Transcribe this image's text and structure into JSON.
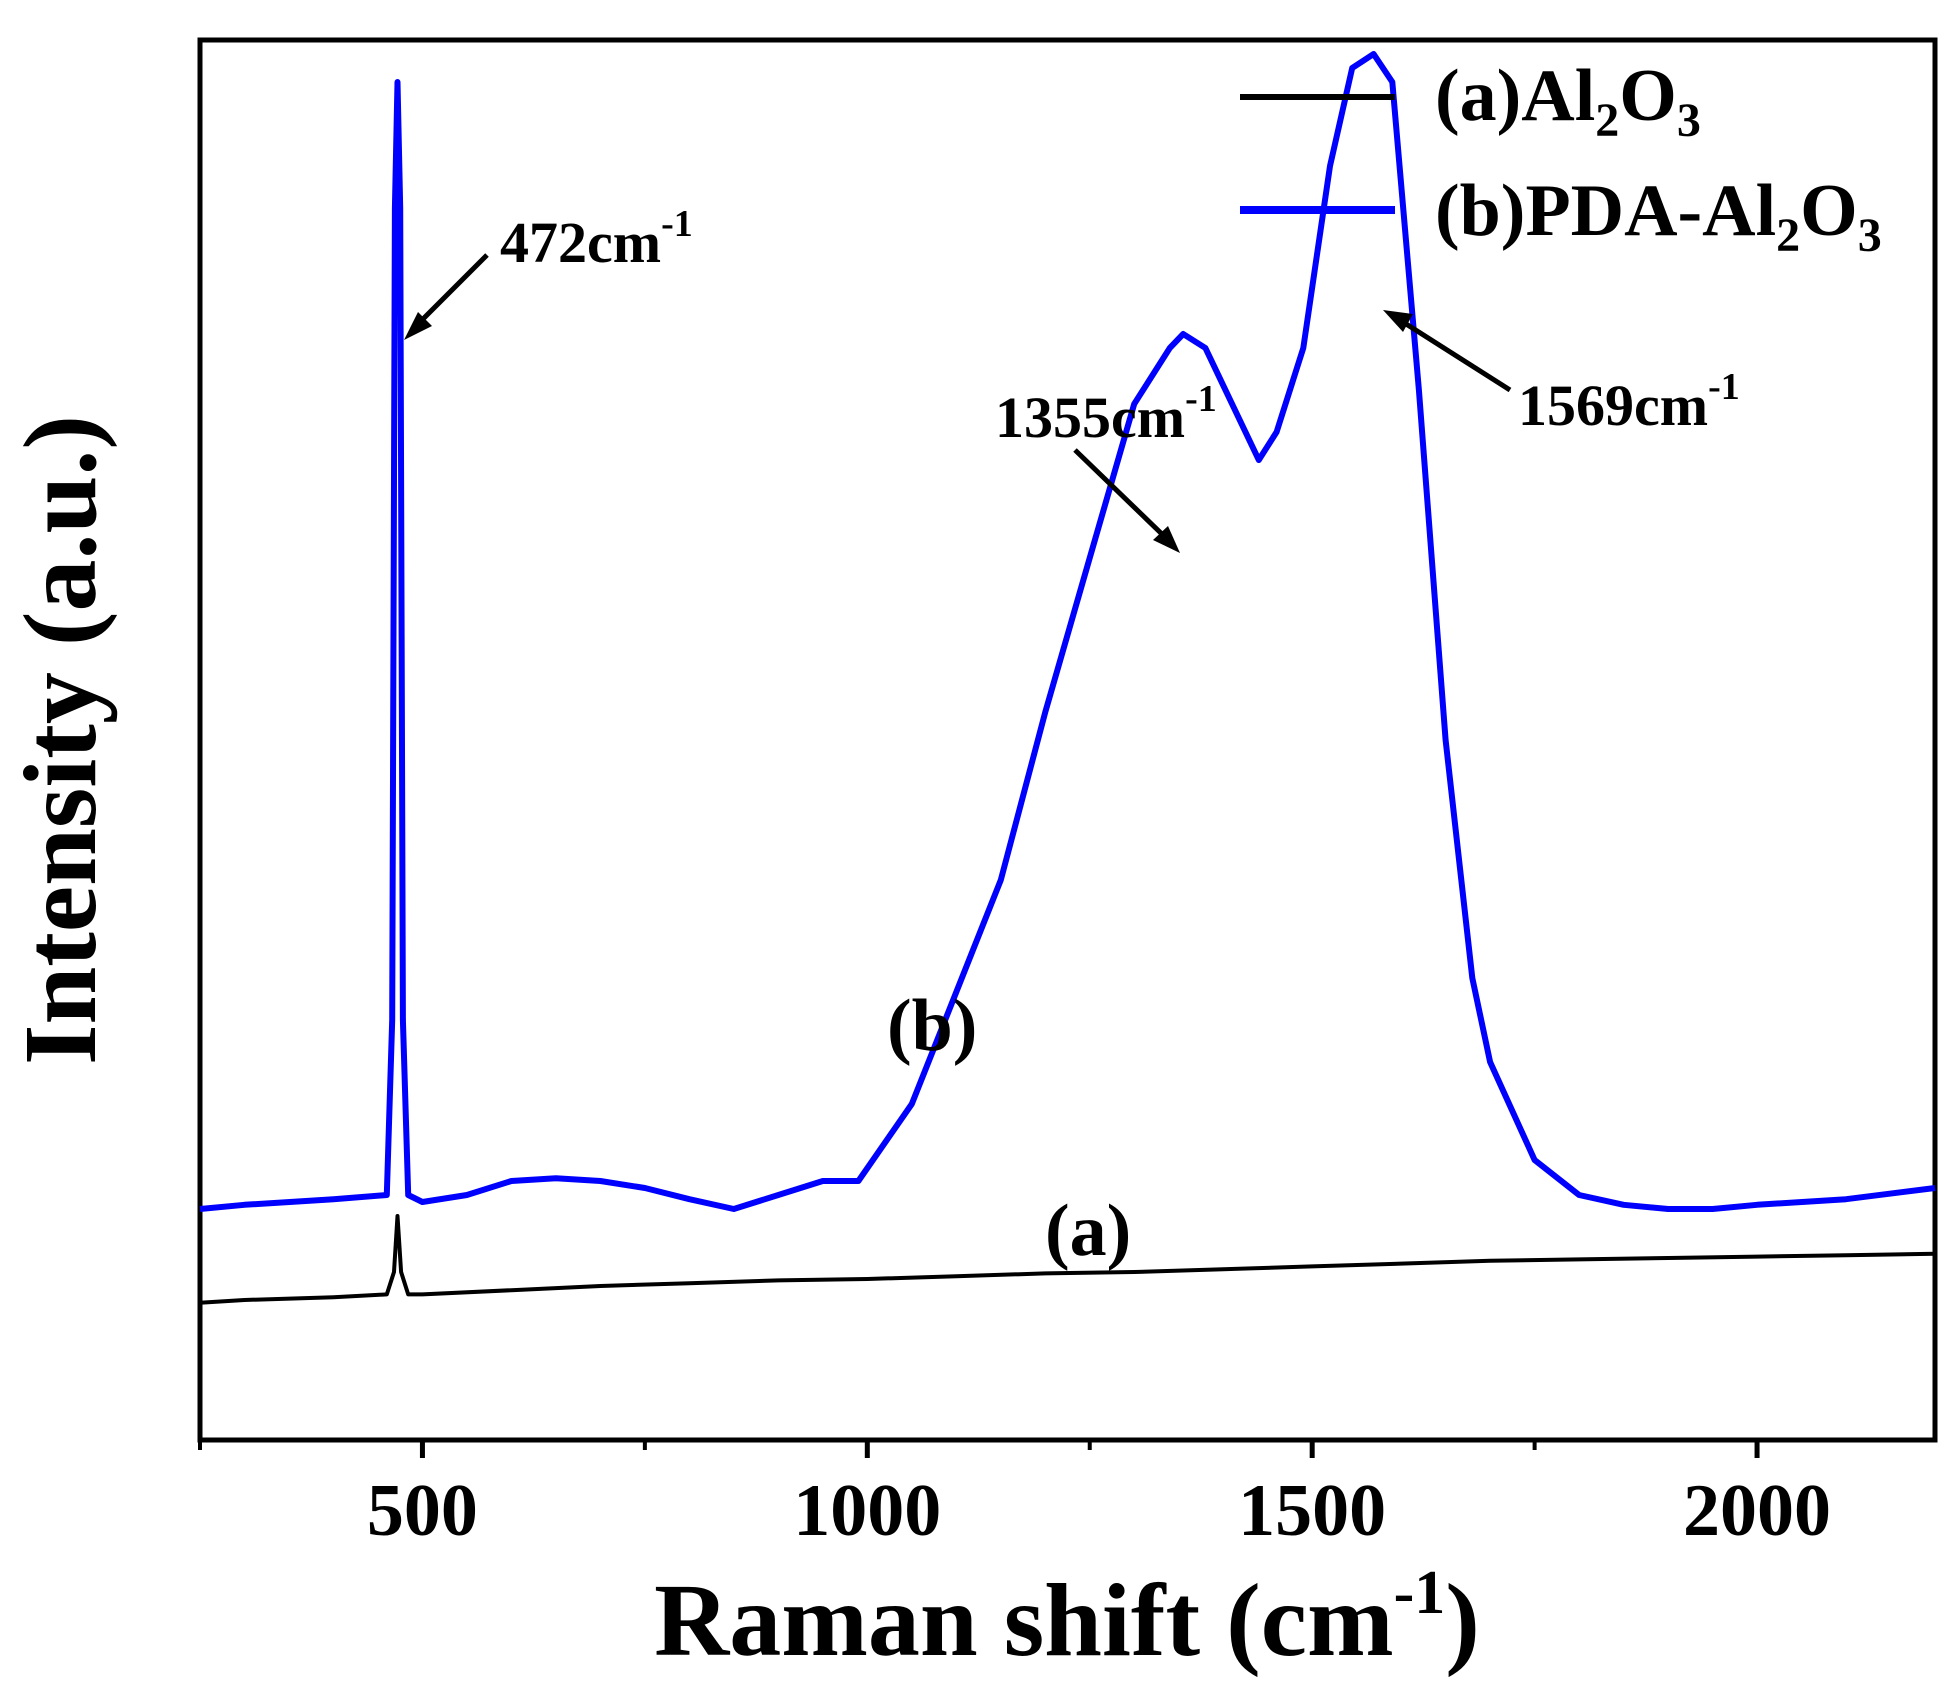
{
  "chart_data": {
    "type": "line",
    "title": "",
    "xlabel": "Raman shift (cm",
    "xlabel_sup": "-1",
    "xlabel_close": ")",
    "ylabel": "Intensity (a.u.)",
    "xlim": [
      250,
      2200
    ],
    "ylim": [
      0,
      100
    ],
    "xticks": [
      500,
      1000,
      1500,
      2000
    ],
    "xtick_labels": [
      "500",
      "1000",
      "1500",
      "2000"
    ],
    "grid": false,
    "legend_position": "top-right",
    "series": [
      {
        "name": "(a)Al2O3",
        "legend_main": "(a)Al",
        "legend_sub1": "2",
        "legend_mid": "O",
        "legend_sub2": "3",
        "color": "#000000",
        "x": [
          250,
          300,
          400,
          460,
          468,
          472,
          476,
          484,
          500,
          600,
          700,
          800,
          900,
          1000,
          1100,
          1200,
          1300,
          1400,
          1500,
          1600,
          1700,
          1800,
          1900,
          2000,
          2100,
          2200
        ],
        "y": [
          9.8,
          10.0,
          10.2,
          10.4,
          12.0,
          16.0,
          12.0,
          10.4,
          10.4,
          10.7,
          11.0,
          11.2,
          11.4,
          11.5,
          11.7,
          11.9,
          12.0,
          12.2,
          12.4,
          12.6,
          12.8,
          12.9,
          13.0,
          13.1,
          13.2,
          13.3
        ]
      },
      {
        "name": "(b)PDA-Al2O3",
        "legend_main": "(b)PDA-Al",
        "legend_sub1": "2",
        "legend_mid": "O",
        "legend_sub2": "3",
        "color": "#0000ff",
        "x": [
          250,
          300,
          400,
          460,
          466,
          469,
          472,
          475,
          478,
          484,
          500,
          550,
          600,
          650,
          700,
          750,
          800,
          850,
          900,
          950,
          990,
          1050,
          1100,
          1150,
          1200,
          1250,
          1300,
          1340,
          1355,
          1380,
          1410,
          1440,
          1460,
          1490,
          1520,
          1545,
          1569,
          1590,
          1620,
          1650,
          1680,
          1700,
          1750,
          1800,
          1850,
          1900,
          1950,
          2000,
          2100,
          2200
        ],
        "y": [
          16.5,
          16.8,
          17.2,
          17.5,
          30.0,
          88.0,
          97.0,
          88.0,
          30.0,
          17.5,
          17.0,
          17.5,
          18.5,
          18.7,
          18.5,
          18.0,
          17.2,
          16.5,
          17.5,
          18.5,
          18.5,
          24.0,
          32.0,
          40.0,
          52.0,
          63.0,
          74.0,
          78.0,
          79.0,
          78.0,
          74.0,
          70.0,
          72.0,
          78.0,
          91.0,
          98.0,
          99.0,
          97.0,
          75.0,
          50.0,
          33.0,
          27.0,
          20.0,
          17.5,
          16.8,
          16.5,
          16.5,
          16.8,
          17.2,
          18.0
        ]
      }
    ],
    "annotations": [
      {
        "label": "472cm",
        "sup": "-1",
        "x": 472,
        "y": 97
      },
      {
        "label": "1355cm",
        "sup": "-1",
        "x": 1355,
        "y": 79
      },
      {
        "label": "1569cm",
        "sup": "-1",
        "x": 1569,
        "y": 99
      },
      {
        "label": "(b)",
        "x": 1120,
        "y": 36
      },
      {
        "label": "(a)",
        "x": 1245,
        "y": 16
      }
    ]
  }
}
